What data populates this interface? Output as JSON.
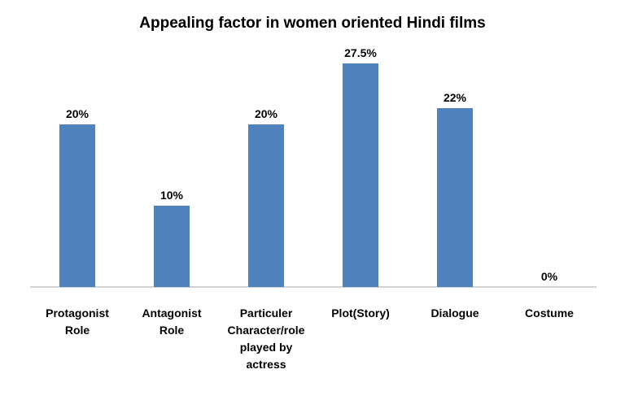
{
  "chart_data": {
    "type": "bar",
    "title": "Appealing factor in women oriented Hindi films",
    "categories": [
      "Protagonist Role",
      "Antagonist Role",
      "Particuler Character/role played by actress",
      "Plot(Story)",
      "Dialogue",
      "Costume"
    ],
    "values": [
      20,
      10,
      20,
      27.5,
      22,
      0
    ],
    "value_labels": [
      "20%",
      "10%",
      "20%",
      "27.5%",
      "22%",
      "0%"
    ],
    "color": "#4f81bd"
  }
}
